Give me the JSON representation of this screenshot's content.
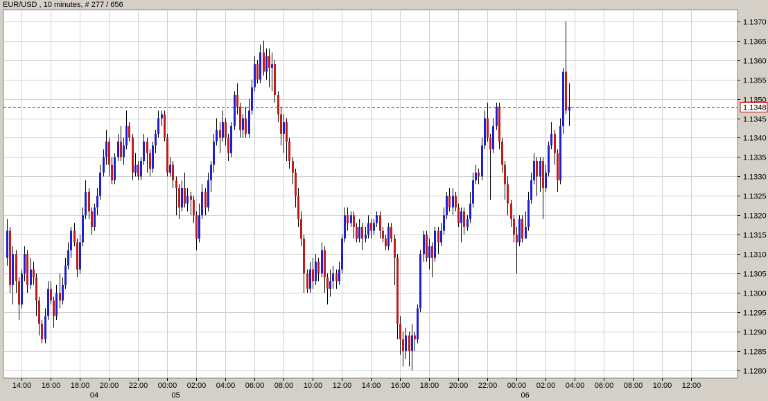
{
  "header": {
    "title": "EUR/USD , 10 minutes, # 277 / 656"
  },
  "colors": {
    "up": "#1f1fd2",
    "down": "#c01c1c",
    "wick": "#000000",
    "current_line": "#2b2bb4",
    "current_box": "#cc0000",
    "grid": "#cfcfcf",
    "plot_bg": "#ffffff",
    "frame_bg": "#d4d0c8"
  },
  "chart_data": {
    "type": "candlestick",
    "title": "EUR/USD , 10 minutes, # 277 / 656",
    "ylim": [
      1.1278,
      1.1373
    ],
    "y_ticks": [
      "1.1280",
      "1.1285",
      "1.1290",
      "1.1295",
      "1.1300",
      "1.1305",
      "1.1310",
      "1.1315",
      "1.1320",
      "1.1325",
      "1.1330",
      "1.1335",
      "1.1340",
      "1.1345",
      "1.1350",
      "1.1355",
      "1.1360",
      "1.1365",
      "1.1370"
    ],
    "x_ticks": [
      "14:00",
      "16:00",
      "18:00",
      "20:00",
      "22:00",
      "00:00",
      "02:00",
      "04:00",
      "06:00",
      "08:00",
      "10:00",
      "12:00",
      "14:00",
      "16:00",
      "18:00",
      "20:00",
      "22:00",
      "00:00",
      "02:00",
      "04:00",
      "06:00",
      "08:00",
      "10:00",
      "12:00"
    ],
    "x_tick_slots": [
      5,
      15,
      25,
      35,
      45,
      55,
      65,
      75,
      85,
      95,
      105,
      115,
      125,
      135,
      145,
      155,
      165,
      175,
      185,
      195,
      205,
      215,
      225,
      235
    ],
    "date_labels": [
      {
        "text": "04",
        "slot": 30
      },
      {
        "text": "05",
        "slot": 58
      },
      {
        "text": "06",
        "slot": 178
      }
    ],
    "current_price": 1.1348,
    "current_price_label": "1.1348",
    "grid": true,
    "candles": [
      [
        1.1309,
        1.1316,
        1.1319,
        1.1307
      ],
      [
        1.1316,
        1.1302,
        1.1317,
        1.13
      ],
      [
        1.1302,
        1.131,
        1.1312,
        1.1297
      ],
      [
        1.131,
        1.1303,
        1.1311,
        1.13
      ],
      [
        1.1303,
        1.1297,
        1.1304,
        1.1293
      ],
      [
        1.1297,
        1.1305,
        1.1306,
        1.1296
      ],
      [
        1.1305,
        1.131,
        1.1312,
        1.1303
      ],
      [
        1.131,
        1.1302,
        1.1311,
        1.13
      ],
      [
        1.1302,
        1.1306,
        1.1309,
        1.1301
      ],
      [
        1.1306,
        1.1304,
        1.1308,
        1.1302
      ],
      [
        1.1304,
        1.1298,
        1.1305,
        1.1294
      ],
      [
        1.1298,
        1.1292,
        1.1299,
        1.1289
      ],
      [
        1.1292,
        1.1288,
        1.1293,
        1.1287
      ],
      [
        1.1288,
        1.1294,
        1.1296,
        1.1287
      ],
      [
        1.1294,
        1.1301,
        1.1303,
        1.1293
      ],
      [
        1.1301,
        1.1298,
        1.1303,
        1.1297
      ],
      [
        1.1298,
        1.1294,
        1.1299,
        1.1291
      ],
      [
        1.1294,
        1.13,
        1.1302,
        1.1293
      ],
      [
        1.13,
        1.1298,
        1.1305,
        1.1296
      ],
      [
        1.1298,
        1.1302,
        1.1304,
        1.1297
      ],
      [
        1.1302,
        1.1307,
        1.1309,
        1.1301
      ],
      [
        1.1307,
        1.1311,
        1.1313,
        1.1306
      ],
      [
        1.1311,
        1.1316,
        1.1317,
        1.1309
      ],
      [
        1.1316,
        1.1313,
        1.1318,
        1.1312
      ],
      [
        1.1313,
        1.1306,
        1.1314,
        1.1304
      ],
      [
        1.1306,
        1.1313,
        1.1315,
        1.1305
      ],
      [
        1.1313,
        1.132,
        1.1322,
        1.1312
      ],
      [
        1.132,
        1.1326,
        1.1329,
        1.1319
      ],
      [
        1.1326,
        1.1321,
        1.1327,
        1.1319
      ],
      [
        1.1321,
        1.1317,
        1.1322,
        1.1315
      ],
      [
        1.1317,
        1.1322,
        1.1323,
        1.1316
      ],
      [
        1.1322,
        1.1325,
        1.1327,
        1.132
      ],
      [
        1.1325,
        1.1331,
        1.1333,
        1.1324
      ],
      [
        1.1331,
        1.1335,
        1.1337,
        1.133
      ],
      [
        1.1335,
        1.1339,
        1.1342,
        1.1333
      ],
      [
        1.1339,
        1.1333,
        1.134,
        1.133
      ],
      [
        1.1333,
        1.1329,
        1.1335,
        1.1328
      ],
      [
        1.1329,
        1.1335,
        1.1336,
        1.1328
      ],
      [
        1.1335,
        1.1339,
        1.1341,
        1.1334
      ],
      [
        1.1339,
        1.1335,
        1.1343,
        1.1334
      ],
      [
        1.1335,
        1.1338,
        1.134,
        1.1333
      ],
      [
        1.1338,
        1.1343,
        1.1347,
        1.1337
      ],
      [
        1.1343,
        1.134,
        1.1344,
        1.1339
      ],
      [
        1.134,
        1.1331,
        1.1341,
        1.1329
      ],
      [
        1.1331,
        1.1333,
        1.1336,
        1.133
      ],
      [
        1.1333,
        1.133,
        1.1334,
        1.1329
      ],
      [
        1.133,
        1.1334,
        1.1335,
        1.1329
      ],
      [
        1.1334,
        1.1339,
        1.1341,
        1.1333
      ],
      [
        1.1339,
        1.1336,
        1.134,
        1.1331
      ],
      [
        1.1336,
        1.1332,
        1.1337,
        1.133
      ],
      [
        1.1332,
        1.1338,
        1.1339,
        1.1331
      ],
      [
        1.1338,
        1.1341,
        1.1342,
        1.1336
      ],
      [
        1.1341,
        1.1345,
        1.1347,
        1.134
      ],
      [
        1.1345,
        1.1346,
        1.1347,
        1.1343
      ],
      [
        1.1346,
        1.134,
        1.1347,
        1.1339
      ],
      [
        1.134,
        1.1331,
        1.1341,
        1.133
      ],
      [
        1.1331,
        1.1333,
        1.1335,
        1.133
      ],
      [
        1.1333,
        1.1329,
        1.1334,
        1.1327
      ],
      [
        1.1329,
        1.1327,
        1.133,
        1.132
      ],
      [
        1.1327,
        1.1322,
        1.1328,
        1.1319
      ],
      [
        1.1322,
        1.1327,
        1.1329,
        1.1321
      ],
      [
        1.1327,
        1.1323,
        1.1331,
        1.1322
      ],
      [
        1.1323,
        1.1325,
        1.1327,
        1.1321
      ],
      [
        1.1325,
        1.1324,
        1.1326,
        1.132
      ],
      [
        1.1324,
        1.132,
        1.1325,
        1.1318
      ],
      [
        1.132,
        1.1314,
        1.1321,
        1.1311
      ],
      [
        1.1314,
        1.132,
        1.1323,
        1.1313
      ],
      [
        1.132,
        1.1326,
        1.1328,
        1.1319
      ],
      [
        1.1326,
        1.1322,
        1.1327,
        1.132
      ],
      [
        1.1322,
        1.1329,
        1.1331,
        1.1321
      ],
      [
        1.1329,
        1.1333,
        1.1334,
        1.1326
      ],
      [
        1.1333,
        1.1339,
        1.1341,
        1.1331
      ],
      [
        1.1339,
        1.1342,
        1.1345,
        1.1338
      ],
      [
        1.1342,
        1.134,
        1.1344,
        1.1336
      ],
      [
        1.134,
        1.1344,
        1.1347,
        1.1339
      ],
      [
        1.1344,
        1.134,
        1.1345,
        1.1338
      ],
      [
        1.134,
        1.1336,
        1.1341,
        1.1334
      ],
      [
        1.1336,
        1.1343,
        1.1344,
        1.1335
      ],
      [
        1.1343,
        1.1351,
        1.1352,
        1.1342
      ],
      [
        1.1351,
        1.1348,
        1.1354,
        1.1346
      ],
      [
        1.1348,
        1.1342,
        1.1349,
        1.134
      ],
      [
        1.1342,
        1.1345,
        1.1346,
        1.134
      ],
      [
        1.1345,
        1.1341,
        1.1348,
        1.134
      ],
      [
        1.1341,
        1.1347,
        1.135,
        1.134
      ],
      [
        1.1347,
        1.1353,
        1.1355,
        1.1346
      ],
      [
        1.1353,
        1.1359,
        1.1361,
        1.1352
      ],
      [
        1.1359,
        1.1355,
        1.136,
        1.1354
      ],
      [
        1.1355,
        1.1362,
        1.1364,
        1.1354
      ],
      [
        1.1362,
        1.1357,
        1.1365,
        1.1356
      ],
      [
        1.1357,
        1.1361,
        1.1363,
        1.1355
      ],
      [
        1.1361,
        1.1358,
        1.1363,
        1.1353
      ],
      [
        1.1358,
        1.1359,
        1.1362,
        1.1352
      ],
      [
        1.1359,
        1.1351,
        1.136,
        1.1349
      ],
      [
        1.1351,
        1.1346,
        1.1352,
        1.1344
      ],
      [
        1.1346,
        1.1341,
        1.1348,
        1.1338
      ],
      [
        1.1341,
        1.1344,
        1.1346,
        1.1336
      ],
      [
        1.1344,
        1.1339,
        1.1345,
        1.1334
      ],
      [
        1.1339,
        1.1334,
        1.134,
        1.1332
      ],
      [
        1.1334,
        1.1331,
        1.1335,
        1.1328
      ],
      [
        1.1331,
        1.1325,
        1.1332,
        1.1322
      ],
      [
        1.1325,
        1.1319,
        1.1327,
        1.1317
      ],
      [
        1.1319,
        1.1314,
        1.1321,
        1.1312
      ],
      [
        1.1314,
        1.1305,
        1.1315,
        1.13
      ],
      [
        1.1305,
        1.1301,
        1.1306,
        1.13
      ],
      [
        1.1301,
        1.1306,
        1.1308,
        1.13
      ],
      [
        1.1306,
        1.1303,
        1.1309,
        1.1301
      ],
      [
        1.1303,
        1.1308,
        1.131,
        1.1302
      ],
      [
        1.1308,
        1.1305,
        1.1309,
        1.1303
      ],
      [
        1.1305,
        1.1311,
        1.1313,
        1.1304
      ],
      [
        1.1311,
        1.1304,
        1.1312,
        1.13
      ],
      [
        1.1304,
        1.1301,
        1.1305,
        1.1297
      ],
      [
        1.1301,
        1.1303,
        1.1306,
        1.1299
      ],
      [
        1.1303,
        1.1305,
        1.1307,
        1.1301
      ],
      [
        1.1305,
        1.1303,
        1.1306,
        1.1301
      ],
      [
        1.1303,
        1.1306,
        1.1308,
        1.1302
      ],
      [
        1.1306,
        1.1314,
        1.1315,
        1.1305
      ],
      [
        1.1314,
        1.132,
        1.1322,
        1.1313
      ],
      [
        1.132,
        1.1318,
        1.1322,
        1.1316
      ],
      [
        1.1318,
        1.132,
        1.1321,
        1.1317
      ],
      [
        1.132,
        1.1317,
        1.1321,
        1.1314
      ],
      [
        1.1317,
        1.1314,
        1.1318,
        1.1313
      ],
      [
        1.1314,
        1.1317,
        1.1319,
        1.1313
      ],
      [
        1.1317,
        1.1314,
        1.1318,
        1.1311
      ],
      [
        1.1314,
        1.1315,
        1.1317,
        1.1313
      ],
      [
        1.1315,
        1.1318,
        1.132,
        1.1314
      ],
      [
        1.1318,
        1.1316,
        1.1319,
        1.1314
      ],
      [
        1.1316,
        1.1318,
        1.1319,
        1.1315
      ],
      [
        1.1318,
        1.132,
        1.1321,
        1.1317
      ],
      [
        1.132,
        1.1316,
        1.1321,
        1.1314
      ],
      [
        1.1316,
        1.1314,
        1.1317,
        1.1313
      ],
      [
        1.1314,
        1.1312,
        1.1315,
        1.1311
      ],
      [
        1.1312,
        1.1317,
        1.1318,
        1.1311
      ],
      [
        1.1317,
        1.1314,
        1.1318,
        1.1313
      ],
      [
        1.1314,
        1.1309,
        1.1315,
        1.1302
      ],
      [
        1.1309,
        1.1292,
        1.131,
        1.1288
      ],
      [
        1.1292,
        1.1288,
        1.1294,
        1.1284
      ],
      [
        1.1288,
        1.1285,
        1.129,
        1.1281
      ],
      [
        1.1285,
        1.1289,
        1.1291,
        1.1283
      ],
      [
        1.1289,
        1.1285,
        1.129,
        1.1281
      ],
      [
        1.1285,
        1.1289,
        1.1292,
        1.128
      ],
      [
        1.1289,
        1.1288,
        1.129,
        1.1285
      ],
      [
        1.1288,
        1.1296,
        1.1297,
        1.1287
      ],
      [
        1.1296,
        1.131,
        1.1311,
        1.1295
      ],
      [
        1.131,
        1.1315,
        1.1316,
        1.1308
      ],
      [
        1.1315,
        1.1309,
        1.1316,
        1.1308
      ],
      [
        1.1309,
        1.1312,
        1.1314,
        1.1306
      ],
      [
        1.1312,
        1.1309,
        1.1313,
        1.1304
      ],
      [
        1.1309,
        1.1316,
        1.1317,
        1.1308
      ],
      [
        1.1316,
        1.1313,
        1.1317,
        1.131
      ],
      [
        1.1313,
        1.1316,
        1.1318,
        1.1312
      ],
      [
        1.1316,
        1.132,
        1.1322,
        1.1315
      ],
      [
        1.132,
        1.1325,
        1.1326,
        1.1319
      ],
      [
        1.1325,
        1.1322,
        1.1327,
        1.1321
      ],
      [
        1.1322,
        1.1325,
        1.1327,
        1.132
      ],
      [
        1.1325,
        1.1322,
        1.1326,
        1.1321
      ],
      [
        1.1322,
        1.1318,
        1.1323,
        1.1317
      ],
      [
        1.1318,
        1.1321,
        1.1322,
        1.1313
      ],
      [
        1.1321,
        1.1317,
        1.1322,
        1.1315
      ],
      [
        1.1317,
        1.1319,
        1.132,
        1.1316
      ],
      [
        1.1319,
        1.1323,
        1.1326,
        1.1318
      ],
      [
        1.1323,
        1.1329,
        1.1331,
        1.1322
      ],
      [
        1.1329,
        1.1331,
        1.1333,
        1.1328
      ],
      [
        1.1331,
        1.133,
        1.1332,
        1.1328
      ],
      [
        1.133,
        1.1338,
        1.134,
        1.1329
      ],
      [
        1.1338,
        1.1345,
        1.1347,
        1.1337
      ],
      [
        1.1345,
        1.134,
        1.1349,
        1.1339
      ],
      [
        1.134,
        1.1337,
        1.1341,
        1.1324
      ],
      [
        1.1337,
        1.1343,
        1.1345,
        1.1336
      ],
      [
        1.1343,
        1.1348,
        1.1349,
        1.1342
      ],
      [
        1.1348,
        1.1339,
        1.1349,
        1.1337
      ],
      [
        1.1339,
        1.1333,
        1.134,
        1.1331
      ],
      [
        1.1333,
        1.1328,
        1.1334,
        1.1324
      ],
      [
        1.1328,
        1.1323,
        1.133,
        1.132
      ],
      [
        1.1323,
        1.1319,
        1.1324,
        1.1317
      ],
      [
        1.1319,
        1.1315,
        1.132,
        1.1313
      ],
      [
        1.1315,
        1.1313,
        1.1317,
        1.1305
      ],
      [
        1.1313,
        1.1319,
        1.132,
        1.1312
      ],
      [
        1.1319,
        1.1314,
        1.132,
        1.1313
      ],
      [
        1.1314,
        1.1317,
        1.1321,
        1.1314
      ],
      [
        1.1317,
        1.1324,
        1.1326,
        1.1316
      ],
      [
        1.1324,
        1.1329,
        1.1331,
        1.1323
      ],
      [
        1.1329,
        1.1334,
        1.1336,
        1.1328
      ],
      [
        1.1334,
        1.133,
        1.1335,
        1.1325
      ],
      [
        1.133,
        1.1334,
        1.1335,
        1.1326
      ],
      [
        1.1334,
        1.1327,
        1.1335,
        1.1319
      ],
      [
        1.1327,
        1.1331,
        1.1333,
        1.1326
      ],
      [
        1.1331,
        1.1338,
        1.1339,
        1.133
      ],
      [
        1.1338,
        1.1341,
        1.1344,
        1.1337
      ],
      [
        1.1341,
        1.1336,
        1.1342,
        1.1333
      ],
      [
        1.1336,
        1.1329,
        1.1337,
        1.1326
      ],
      [
        1.1329,
        1.1343,
        1.1345,
        1.1328
      ],
      [
        1.1343,
        1.1357,
        1.1358,
        1.1341
      ],
      [
        1.1357,
        1.1347,
        1.137,
        1.1346
      ],
      [
        1.1347,
        1.1348,
        1.1354,
        1.1343
      ]
    ]
  }
}
